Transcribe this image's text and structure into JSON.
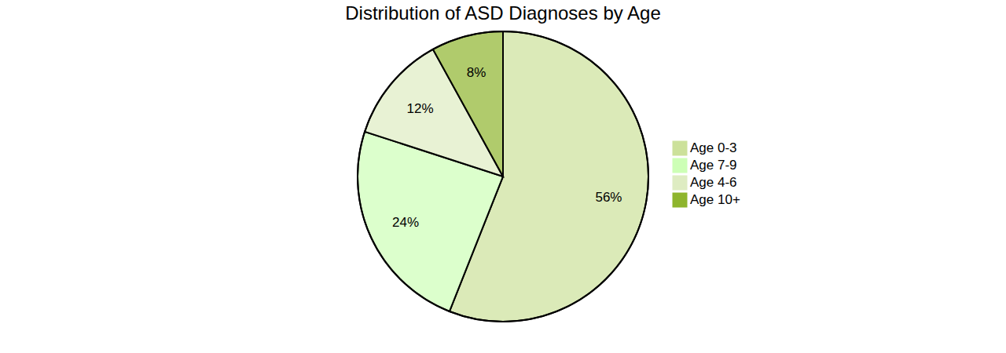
{
  "chart_data": {
    "type": "pie",
    "title": "Distribution of ASD Diagnoses by Age",
    "categories": [
      "Age 0-3",
      "Age 7-9",
      "Age 4-6",
      "Age 10+"
    ],
    "values": [
      56,
      24,
      12,
      8
    ],
    "value_labels": [
      "56%",
      "24%",
      "12%",
      "8%"
    ],
    "colors": [
      "#cce19a",
      "#cdffb6",
      "#deecc2",
      "#8eb52d"
    ],
    "data_labels": true,
    "legend": "right"
  }
}
